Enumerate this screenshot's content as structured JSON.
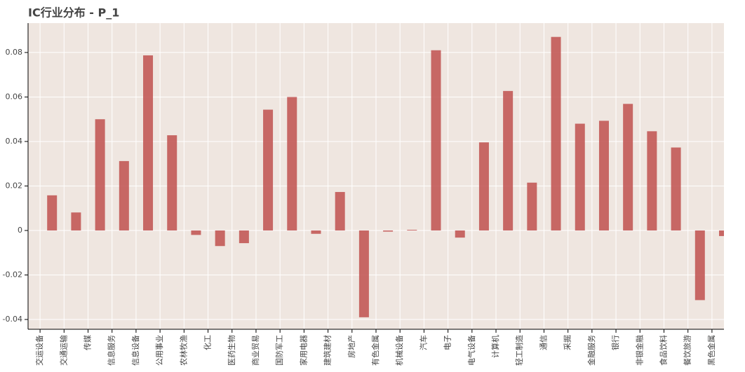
{
  "chart_data": {
    "type": "bar",
    "title": "IC行业分布 - P_1",
    "categories": [
      "交运设备",
      "交通运输",
      "传媒",
      "信息服务",
      "信息设备",
      "公用事业",
      "农林牧渔",
      "化工",
      "医药生物",
      "商业贸易",
      "国防军工",
      "家用电器",
      "建筑建材",
      "房地产",
      "有色金属",
      "机械设备",
      "汽车",
      "电子",
      "电气设备",
      "计算机",
      "轻工制造",
      "通信",
      "采掘",
      "金融服务",
      "银行",
      "非银金融",
      "食品饮料",
      "餐饮旅游",
      "黑色金属"
    ],
    "values": [
      0.0158,
      0.0081,
      0.05,
      0.0312,
      0.0787,
      0.0428,
      -0.002,
      -0.007,
      -0.0057,
      0.0543,
      0.06,
      -0.0015,
      0.0173,
      -0.039,
      -0.0005,
      0.0003,
      0.081,
      -0.0032,
      0.0396,
      0.0627,
      0.0215,
      0.087,
      0.048,
      0.0493,
      0.0569,
      0.0446,
      0.0373,
      -0.0313,
      -0.0025
    ],
    "color": "#c0504d",
    "ylim": [
      -0.0444,
      0.0932
    ],
    "yticks": [
      -0.04,
      -0.02,
      0,
      0.02,
      0.04,
      0.06,
      0.08
    ],
    "grid": true
  }
}
